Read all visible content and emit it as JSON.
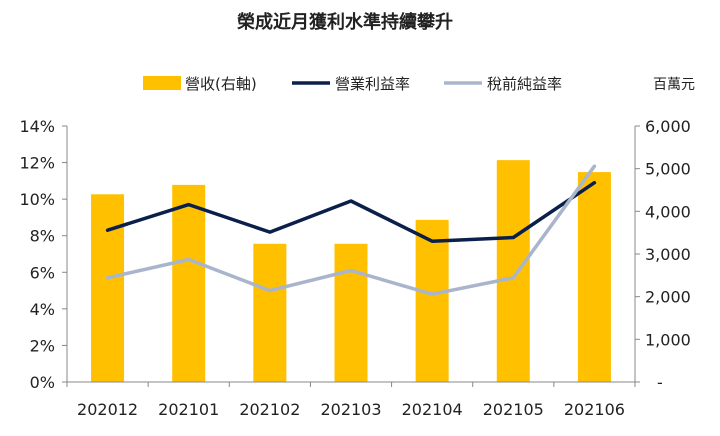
{
  "chart_data": {
    "type": "bar+line",
    "title": "榮成近月獲利水準持續攀升",
    "unit_label": "百萬元",
    "categories": [
      "202012",
      "202101",
      "202102",
      "202103",
      "202104",
      "202105",
      "202106"
    ],
    "bar_series": {
      "name": "營收(右軸)",
      "axis": "right",
      "color": "#FFC000",
      "values": [
        4400,
        4620,
        3240,
        3240,
        3800,
        5200,
        4920
      ]
    },
    "line_series": [
      {
        "name": "營業利益率",
        "axis": "left",
        "color": "#0B1F4B",
        "values": [
          8.3,
          9.7,
          8.2,
          9.9,
          7.7,
          7.9,
          10.9
        ]
      },
      {
        "name": "稅前純益率",
        "axis": "left",
        "color": "#A9B5CC",
        "values": [
          5.7,
          6.7,
          5.0,
          6.1,
          4.8,
          5.7,
          11.8
        ]
      }
    ],
    "left_axis": {
      "ylim": [
        0,
        14
      ],
      "ticks": [
        "0%",
        "2%",
        "4%",
        "6%",
        "8%",
        "10%",
        "12%",
        "14%"
      ]
    },
    "right_axis": {
      "ylim": [
        0,
        6000
      ],
      "ticks": [
        "-",
        "1,000",
        "2,000",
        "3,000",
        "4,000",
        "5,000",
        "6,000"
      ]
    },
    "legend_position": "top"
  }
}
